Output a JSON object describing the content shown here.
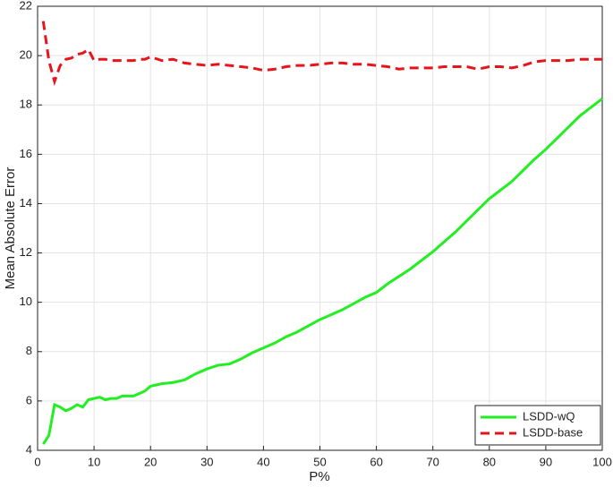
{
  "chart_data": {
    "type": "line",
    "xlabel": "P%",
    "ylabel": "Mean Absolute Error",
    "x": [
      1,
      2,
      3,
      4,
      5,
      6,
      7,
      8,
      9,
      10,
      11,
      12,
      13,
      14,
      15,
      16,
      17,
      18,
      19,
      20,
      22,
      24,
      26,
      28,
      30,
      32,
      34,
      36,
      38,
      40,
      42,
      44,
      46,
      48,
      50,
      52,
      54,
      56,
      58,
      60,
      62,
      64,
      66,
      68,
      70,
      72,
      74,
      76,
      78,
      80,
      82,
      84,
      86,
      88,
      90,
      92,
      94,
      96,
      98,
      100
    ],
    "series": [
      {
        "name": "LSDD-wQ",
        "color": "#22ee22",
        "dash": false,
        "values": [
          4.25,
          4.6,
          5.85,
          5.75,
          5.6,
          5.7,
          5.85,
          5.75,
          6.05,
          6.1,
          6.15,
          6.05,
          6.1,
          6.1,
          6.2,
          6.2,
          6.2,
          6.3,
          6.4,
          6.6,
          6.7,
          6.75,
          6.85,
          7.1,
          7.3,
          7.45,
          7.5,
          7.7,
          7.95,
          8.15,
          8.35,
          8.6,
          8.8,
          9.05,
          9.3,
          9.5,
          9.7,
          9.95,
          10.2,
          10.4,
          10.75,
          11.05,
          11.35,
          11.7,
          12.05,
          12.45,
          12.85,
          13.3,
          13.75,
          14.2,
          14.55,
          14.9,
          15.35,
          15.8,
          16.2,
          16.65,
          17.1,
          17.55,
          17.9,
          18.25
        ]
      },
      {
        "name": "LSDD-base",
        "color": "#e8141b",
        "dash": true,
        "values": [
          21.4,
          19.8,
          18.95,
          19.6,
          19.85,
          19.9,
          20.05,
          20.1,
          20.25,
          19.8,
          19.85,
          19.85,
          19.8,
          19.8,
          19.8,
          19.8,
          19.8,
          19.85,
          19.85,
          19.95,
          19.8,
          19.85,
          19.7,
          19.65,
          19.6,
          19.65,
          19.6,
          19.55,
          19.5,
          19.4,
          19.45,
          19.55,
          19.6,
          19.6,
          19.65,
          19.7,
          19.7,
          19.65,
          19.65,
          19.6,
          19.55,
          19.45,
          19.5,
          19.5,
          19.5,
          19.55,
          19.55,
          19.55,
          19.45,
          19.55,
          19.55,
          19.5,
          19.6,
          19.75,
          19.8,
          19.8,
          19.8,
          19.85,
          19.85,
          19.85
        ]
      }
    ],
    "xlim": [
      0,
      100
    ],
    "xticks": [
      0,
      10,
      20,
      30,
      40,
      50,
      60,
      70,
      80,
      90,
      100
    ],
    "ylim": [
      4,
      22
    ],
    "yticks": [
      4,
      6,
      8,
      10,
      12,
      14,
      16,
      18,
      20,
      22
    ],
    "grid": true,
    "legend": "lower right"
  }
}
